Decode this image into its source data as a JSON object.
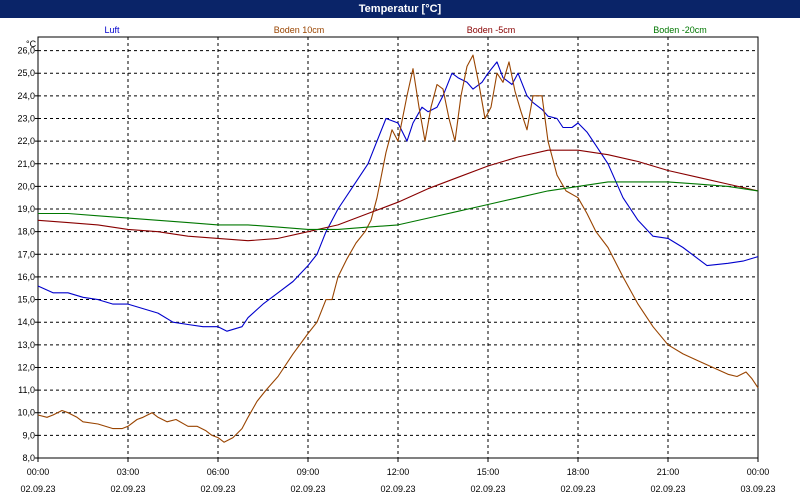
{
  "chart_data": {
    "type": "line",
    "title": "Temperatur [°C]",
    "ylabel": "°C",
    "ylim": [
      8.0,
      26.6
    ],
    "xlim_hours": [
      0,
      24
    ],
    "grid": true,
    "yticks": [
      "8,0",
      "9,0",
      "10,0",
      "11,0",
      "12,0",
      "13,0",
      "14,0",
      "15,0",
      "16,0",
      "17,0",
      "18,0",
      "19,0",
      "20,0",
      "21,0",
      "22,0",
      "23,0",
      "24,0",
      "25,0",
      "26,0"
    ],
    "xticks": [
      {
        "time": "00:00",
        "date": "02.09.23"
      },
      {
        "time": "03:00",
        "date": "02.09.23"
      },
      {
        "time": "06:00",
        "date": "02.09.23"
      },
      {
        "time": "09:00",
        "date": "02.09.23"
      },
      {
        "time": "12:00",
        "date": "02.09.23"
      },
      {
        "time": "15:00",
        "date": "02.09.23"
      },
      {
        "time": "18:00",
        "date": "02.09.23"
      },
      {
        "time": "21:00",
        "date": "02.09.23"
      },
      {
        "time": "00:00",
        "date": "03.09.23"
      }
    ],
    "series": [
      {
        "name": "Luft",
        "color": "#0000cc",
        "points": [
          [
            0,
            15.6
          ],
          [
            0.5,
            15.3
          ],
          [
            1,
            15.3
          ],
          [
            1.5,
            15.1
          ],
          [
            2,
            15.0
          ],
          [
            2.5,
            14.8
          ],
          [
            3,
            14.8
          ],
          [
            3.5,
            14.6
          ],
          [
            4,
            14.4
          ],
          [
            4.5,
            14.0
          ],
          [
            5,
            13.9
          ],
          [
            5.5,
            13.8
          ],
          [
            6,
            13.8
          ],
          [
            6.3,
            13.6
          ],
          [
            6.8,
            13.8
          ],
          [
            7,
            14.2
          ],
          [
            7.5,
            14.8
          ],
          [
            8,
            15.3
          ],
          [
            8.5,
            15.8
          ],
          [
            9,
            16.5
          ],
          [
            9.3,
            17.0
          ],
          [
            9.6,
            18.0
          ],
          [
            10,
            19.0
          ],
          [
            10.5,
            20.0
          ],
          [
            11,
            21.0
          ],
          [
            11.3,
            22.0
          ],
          [
            11.6,
            23.0
          ],
          [
            12,
            22.8
          ],
          [
            12.3,
            22.0
          ],
          [
            12.5,
            22.8
          ],
          [
            12.8,
            23.5
          ],
          [
            13,
            23.3
          ],
          [
            13.3,
            23.5
          ],
          [
            13.5,
            24.0
          ],
          [
            13.8,
            25.0
          ],
          [
            14,
            24.8
          ],
          [
            14.3,
            24.6
          ],
          [
            14.5,
            24.3
          ],
          [
            14.8,
            24.6
          ],
          [
            15,
            25.0
          ],
          [
            15.3,
            25.5
          ],
          [
            15.5,
            24.8
          ],
          [
            15.8,
            24.5
          ],
          [
            16,
            25.0
          ],
          [
            16.3,
            24.0
          ],
          [
            16.5,
            23.7
          ],
          [
            16.8,
            23.4
          ],
          [
            17,
            23.1
          ],
          [
            17.3,
            23.0
          ],
          [
            17.5,
            22.6
          ],
          [
            17.8,
            22.6
          ],
          [
            18,
            22.8
          ],
          [
            18.3,
            22.4
          ],
          [
            18.6,
            21.8
          ],
          [
            19,
            21.0
          ],
          [
            19.5,
            19.5
          ],
          [
            20,
            18.5
          ],
          [
            20.5,
            17.8
          ],
          [
            21,
            17.7
          ],
          [
            21.5,
            17.3
          ],
          [
            22,
            16.8
          ],
          [
            22.3,
            16.5
          ],
          [
            23,
            16.6
          ],
          [
            23.5,
            16.7
          ],
          [
            24,
            16.9
          ]
        ]
      },
      {
        "name": "Boden 10cm",
        "color": "#994400",
        "points": [
          [
            0,
            9.9
          ],
          [
            0.3,
            9.8
          ],
          [
            0.5,
            9.9
          ],
          [
            0.8,
            10.1
          ],
          [
            1,
            10.0
          ],
          [
            1.3,
            9.8
          ],
          [
            1.5,
            9.6
          ],
          [
            2,
            9.5
          ],
          [
            2.5,
            9.3
          ],
          [
            2.8,
            9.3
          ],
          [
            3,
            9.4
          ],
          [
            3.3,
            9.7
          ],
          [
            3.5,
            9.8
          ],
          [
            3.8,
            10.0
          ],
          [
            4,
            9.8
          ],
          [
            4.3,
            9.6
          ],
          [
            4.6,
            9.7
          ],
          [
            5,
            9.4
          ],
          [
            5.3,
            9.4
          ],
          [
            5.6,
            9.2
          ],
          [
            5.8,
            9.0
          ],
          [
            6,
            8.9
          ],
          [
            6.2,
            8.7
          ],
          [
            6.5,
            8.9
          ],
          [
            6.8,
            9.3
          ],
          [
            7,
            9.8
          ],
          [
            7.3,
            10.5
          ],
          [
            7.6,
            11.0
          ],
          [
            8,
            11.6
          ],
          [
            8.5,
            12.6
          ],
          [
            9,
            13.5
          ],
          [
            9.3,
            14.0
          ],
          [
            9.6,
            15.0
          ],
          [
            9.8,
            15.0
          ],
          [
            10,
            16.0
          ],
          [
            10.3,
            16.8
          ],
          [
            10.6,
            17.5
          ],
          [
            10.9,
            18.0
          ],
          [
            11.1,
            18.5
          ],
          [
            11.3,
            19.5
          ],
          [
            11.6,
            21.5
          ],
          [
            11.8,
            22.5
          ],
          [
            12,
            22.0
          ],
          [
            12.3,
            24.0
          ],
          [
            12.5,
            25.2
          ],
          [
            12.7,
            23.5
          ],
          [
            12.9,
            22.0
          ],
          [
            13.1,
            23.5
          ],
          [
            13.3,
            24.5
          ],
          [
            13.5,
            24.3
          ],
          [
            13.7,
            23.0
          ],
          [
            13.9,
            22.0
          ],
          [
            14.1,
            24.0
          ],
          [
            14.3,
            25.3
          ],
          [
            14.5,
            25.8
          ],
          [
            14.7,
            24.5
          ],
          [
            14.9,
            23.0
          ],
          [
            15.1,
            23.5
          ],
          [
            15.3,
            25.0
          ],
          [
            15.5,
            24.6
          ],
          [
            15.7,
            25.5
          ],
          [
            15.9,
            24.2
          ],
          [
            16.1,
            23.3
          ],
          [
            16.3,
            22.5
          ],
          [
            16.5,
            24.0
          ],
          [
            16.8,
            24.0
          ],
          [
            17,
            22.0
          ],
          [
            17.3,
            20.5
          ],
          [
            17.6,
            19.8
          ],
          [
            18,
            19.5
          ],
          [
            18.3,
            18.8
          ],
          [
            18.6,
            18.0
          ],
          [
            19,
            17.3
          ],
          [
            19.5,
            16.0
          ],
          [
            20,
            14.8
          ],
          [
            20.5,
            13.8
          ],
          [
            21,
            13.0
          ],
          [
            21.5,
            12.6
          ],
          [
            22,
            12.3
          ],
          [
            22.5,
            12.0
          ],
          [
            23,
            11.7
          ],
          [
            23.3,
            11.6
          ],
          [
            23.6,
            11.8
          ],
          [
            23.8,
            11.5
          ],
          [
            24,
            11.1
          ]
        ]
      },
      {
        "name": "Boden -5cm",
        "color": "#880000",
        "points": [
          [
            0,
            18.5
          ],
          [
            1,
            18.4
          ],
          [
            2,
            18.3
          ],
          [
            3,
            18.1
          ],
          [
            4,
            18.0
          ],
          [
            5,
            17.8
          ],
          [
            6,
            17.7
          ],
          [
            7,
            17.6
          ],
          [
            8,
            17.7
          ],
          [
            9,
            18.0
          ],
          [
            10,
            18.3
          ],
          [
            11,
            18.8
          ],
          [
            12,
            19.3
          ],
          [
            13,
            19.9
          ],
          [
            14,
            20.4
          ],
          [
            15,
            20.9
          ],
          [
            16,
            21.3
          ],
          [
            17,
            21.6
          ],
          [
            18,
            21.6
          ],
          [
            19,
            21.4
          ],
          [
            20,
            21.1
          ],
          [
            21,
            20.7
          ],
          [
            22,
            20.4
          ],
          [
            23,
            20.1
          ],
          [
            24,
            19.8
          ]
        ]
      },
      {
        "name": "Boden -20cm",
        "color": "#007700",
        "points": [
          [
            0,
            18.8
          ],
          [
            1,
            18.8
          ],
          [
            2,
            18.7
          ],
          [
            3,
            18.6
          ],
          [
            4,
            18.5
          ],
          [
            5,
            18.4
          ],
          [
            6,
            18.3
          ],
          [
            7,
            18.3
          ],
          [
            8,
            18.2
          ],
          [
            9,
            18.1
          ],
          [
            10,
            18.1
          ],
          [
            11,
            18.2
          ],
          [
            12,
            18.3
          ],
          [
            13,
            18.6
          ],
          [
            14,
            18.9
          ],
          [
            15,
            19.2
          ],
          [
            16,
            19.5
          ],
          [
            17,
            19.8
          ],
          [
            18,
            20.0
          ],
          [
            19,
            20.2
          ],
          [
            20,
            20.2
          ],
          [
            21,
            20.2
          ],
          [
            22,
            20.1
          ],
          [
            23,
            20.0
          ],
          [
            24,
            19.8
          ]
        ]
      }
    ]
  }
}
